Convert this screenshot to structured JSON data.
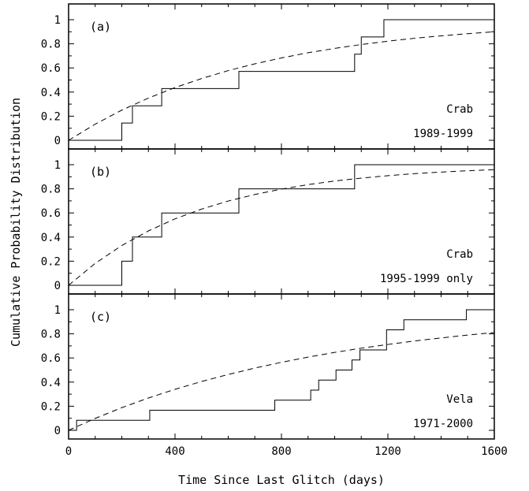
{
  "chart_data": {
    "type": "line",
    "xlabel": "Time Since Last Glitch (days)",
    "ylabel": "Cumulative Probability Distribution",
    "xlim": [
      0,
      1600
    ],
    "x_ticks": [
      "0",
      "400",
      "800",
      "1200",
      "1600"
    ],
    "ylim": [
      0,
      1
    ],
    "y_ticks": [
      "0",
      "0.2",
      "0.4",
      "0.6",
      "0.8",
      "1"
    ],
    "grid": false,
    "legend": "none",
    "panels": [
      {
        "tag": "(a)",
        "annotation_lines": [
          "Crab",
          "1989-1999"
        ],
        "series": [
          {
            "style": "solid-step",
            "x": [
              0,
              200,
              240,
              350,
              640,
              1075,
              1100,
              1185,
              1600
            ],
            "y": [
              0,
              0.143,
              0.286,
              0.429,
              0.571,
              0.714,
              0.857,
              1.0,
              1.0
            ]
          },
          {
            "style": "dashed",
            "x": [
              0,
              100,
              200,
              300,
              400,
              500,
              600,
              700,
              800,
              900,
              1000,
              1100,
              1200,
              1300,
              1400,
              1500,
              1600
            ],
            "y": [
              0,
              0.134,
              0.25,
              0.35,
              0.437,
              0.512,
              0.578,
              0.634,
              0.683,
              0.726,
              0.762,
              0.794,
              0.822,
              0.846,
              0.866,
              0.884,
              0.9
            ]
          }
        ]
      },
      {
        "tag": "(b)",
        "annotation_lines": [
          "Crab",
          "1995-1999 only"
        ],
        "series": [
          {
            "style": "solid-step",
            "x": [
              0,
              200,
              240,
              350,
              640,
              1075,
              1600
            ],
            "y": [
              0,
              0.2,
              0.4,
              0.6,
              0.8,
              1.0,
              1.0
            ]
          },
          {
            "style": "dashed",
            "x": [
              0,
              100,
              200,
              300,
              400,
              500,
              600,
              700,
              800,
              900,
              1000,
              1100,
              1200,
              1300,
              1400,
              1500,
              1600
            ],
            "y": [
              0,
              0.182,
              0.33,
              0.451,
              0.551,
              0.632,
              0.699,
              0.753,
              0.798,
              0.835,
              0.865,
              0.889,
              0.909,
              0.926,
              0.939,
              0.95,
              0.959
            ]
          }
        ]
      },
      {
        "tag": "(c)",
        "annotation_lines": [
          "Vela",
          "1971-2000"
        ],
        "series": [
          {
            "style": "solid-step",
            "x": [
              0,
              30,
              305,
              775,
              910,
              940,
              1005,
              1065,
              1095,
              1195,
              1260,
              1495,
              1600
            ],
            "y": [
              0,
              0.083,
              0.167,
              0.25,
              0.333,
              0.417,
              0.5,
              0.583,
              0.667,
              0.833,
              0.917,
              1.0,
              1.0
            ]
          },
          {
            "style": "dashed",
            "x": [
              0,
              100,
              200,
              300,
              400,
              500,
              600,
              700,
              800,
              900,
              1000,
              1100,
              1200,
              1300,
              1400,
              1500,
              1600
            ],
            "y": [
              0,
              0.099,
              0.188,
              0.268,
              0.34,
              0.405,
              0.463,
              0.516,
              0.564,
              0.607,
              0.646,
              0.681,
              0.712,
              0.741,
              0.766,
              0.79,
              0.811
            ]
          }
        ]
      }
    ]
  }
}
